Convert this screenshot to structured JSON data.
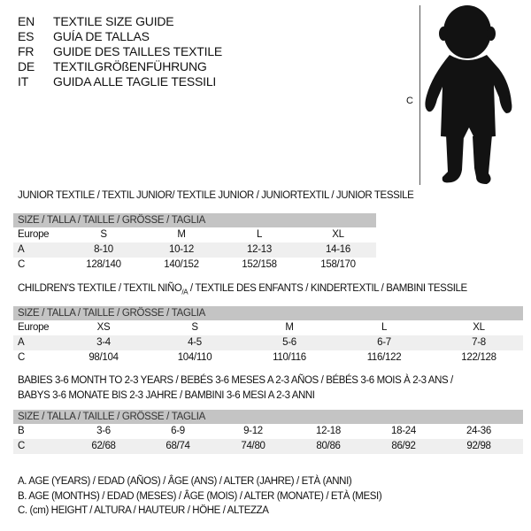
{
  "languages": [
    {
      "code": "EN",
      "title": "TEXTILE SIZE GUIDE"
    },
    {
      "code": "ES",
      "title": "GUÍA DE TALLAS"
    },
    {
      "code": "FR",
      "title": "GUIDE DES TAILLES TEXTILE"
    },
    {
      "code": "DE",
      "title": "TEXTILGRÖßENFÜHRUNG"
    },
    {
      "code": "IT",
      "title": "GUIDA ALLE TAGLIE TESSILI"
    }
  ],
  "figure": {
    "measure_label": "C",
    "icon": "child-silhouette"
  },
  "size_header": "SIZE / TALLA / TAILLE / GRÖSSE / TAGLIA",
  "junior": {
    "heading": "JUNIOR TEXTILE / TEXTIL JUNIOR/ TEXTILE JUNIOR / JUNIORTEXTIL / JUNIOR TESSILE",
    "rows": [
      {
        "label": "Europe",
        "values": [
          "S",
          "M",
          "L",
          "XL"
        ]
      },
      {
        "label": "A",
        "values": [
          "8-10",
          "10-12",
          "12-13",
          "14-16"
        ]
      },
      {
        "label": "C",
        "values": [
          "128/140",
          "140/152",
          "152/158",
          "158/170"
        ]
      }
    ]
  },
  "children": {
    "heading_pre": "CHILDREN'S TEXTILE / TEXTIL NIÑO",
    "heading_sub": "/A",
    "heading_post": " / TEXTILE DES ENFANTS / KINDERTEXTIL / BAMBINI TESSILE",
    "rows": [
      {
        "label": "Europe",
        "values": [
          "XS",
          "S",
          "M",
          "L",
          "XL"
        ]
      },
      {
        "label": "A",
        "values": [
          "3-4",
          "4-5",
          "5-6",
          "6-7",
          "7-8"
        ]
      },
      {
        "label": "C",
        "values": [
          "98/104",
          "104/110",
          "110/116",
          "116/122",
          "122/128"
        ]
      }
    ]
  },
  "babies": {
    "heading_line1": "BABIES 3-6 MONTH TO 2-3 YEARS / BEBÉS 3-6 MESES A 2-3 AÑOS / BÉBÉS 3-6 MOIS À 2-3 ANS /",
    "heading_line2": "BABYS 3-6 MONATE BIS 2-3 JAHRE / BAMBINI 3-6 MESI A 2-3 ANNI",
    "rows": [
      {
        "label": "B",
        "values": [
          "3-6",
          "6-9",
          "9-12",
          "12-18",
          "18-24",
          "24-36"
        ]
      },
      {
        "label": "C",
        "values": [
          "62/68",
          "68/74",
          "74/80",
          "80/86",
          "86/92",
          "92/98"
        ]
      }
    ]
  },
  "legend": [
    "A. AGE (YEARS) / EDAD (AÑOS) / ÂGE (ANS) / ALTER (JAHRE) / ETÀ (ANNI)",
    "B. AGE (MONTHS) / EDAD (MESES) / ÂGE (MOIS) / ALTER (MONATE) / ETÀ (MESI)",
    "C. (cm) HEIGHT / ALTURA / HAUTEUR / HÖHE / ALTEZZA"
  ]
}
